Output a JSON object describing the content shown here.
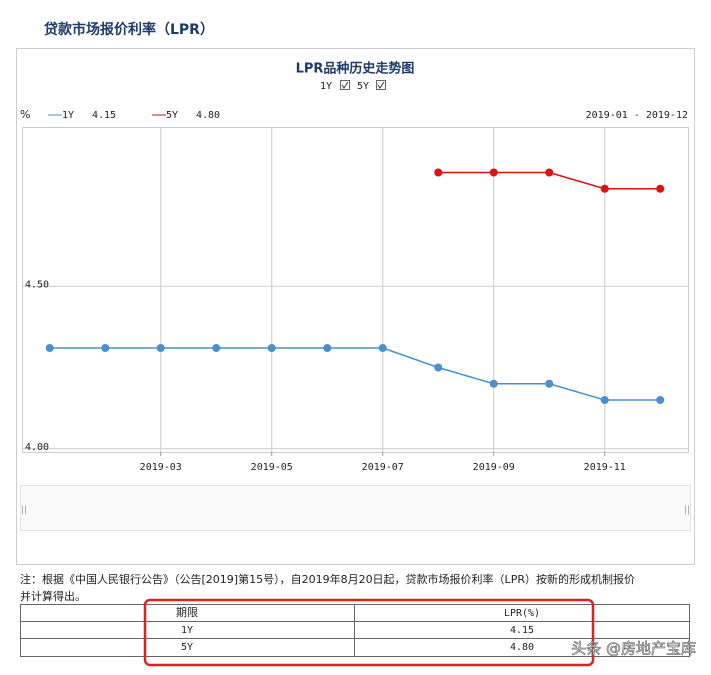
{
  "header": {
    "title": "贷款市场报价利率（LPR）"
  },
  "chart_data": {
    "type": "line",
    "title": "LPR品种历史走势图",
    "toggles": [
      "1Y",
      "5Y"
    ],
    "y_unit": "%",
    "date_range": "2019-01 - 2019-12",
    "categories": [
      null,
      null,
      "2019-03",
      null,
      "2019-05",
      null,
      "2019-07",
      null,
      "2019-09",
      null,
      "2019-11",
      null
    ],
    "series": [
      {
        "name": "1Y",
        "color": "#4a90d0",
        "latest_label": "4.15",
        "values": [
          4.31,
          4.31,
          4.31,
          4.31,
          4.31,
          4.31,
          4.31,
          4.25,
          4.2,
          4.2,
          4.15,
          4.15
        ]
      },
      {
        "name": "5Y",
        "color": "#dd1111",
        "latest_label": "4.80",
        "values": [
          null,
          null,
          null,
          null,
          null,
          null,
          null,
          4.85,
          4.85,
          4.85,
          4.8,
          4.8
        ]
      }
    ],
    "ylim": [
      3.99,
      4.99
    ],
    "yticks": [
      {
        "value": 4,
        "label": "4.00"
      },
      {
        "value": 4.5,
        "label": "4.50"
      }
    ],
    "grid": true
  },
  "note": [
    "注：根据《中国人民银行公告》（公告[2019]第15号），自2019年8月20日起，贷款市场报价利率（LPR）按新的形成机制报价",
    "并计算得出。"
  ],
  "table": {
    "header": [
      "期限",
      "LPR(%)"
    ],
    "rows": [
      [
        "1Y",
        "4.15"
      ],
      [
        "5Y",
        "4.80"
      ]
    ]
  },
  "watermark": "头条 @房地产宝库"
}
